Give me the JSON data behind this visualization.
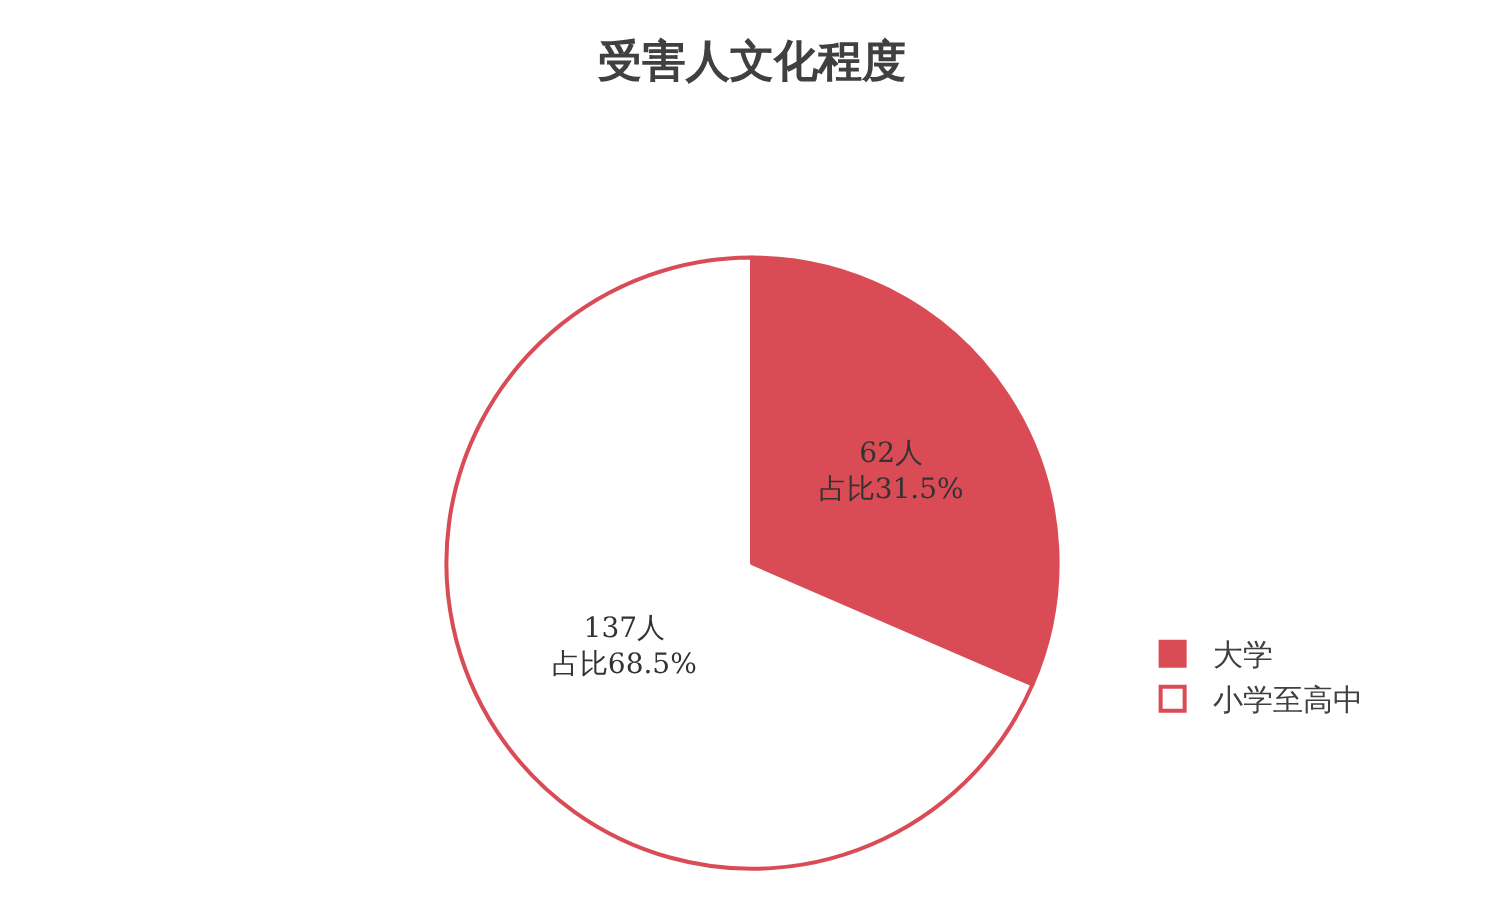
{
  "chart_data": {
    "type": "pie",
    "title": "受害人文化程度",
    "categories": [
      "大学",
      "小学至高中"
    ],
    "values": [
      31.5,
      68.5
    ],
    "colors": [
      "#d94b55",
      "#ffffff"
    ],
    "value_labels": [
      [
        "62人",
        "占比31.5%"
      ],
      [
        "137人",
        "占比68.5%"
      ]
    ],
    "legend": "bottom right"
  }
}
